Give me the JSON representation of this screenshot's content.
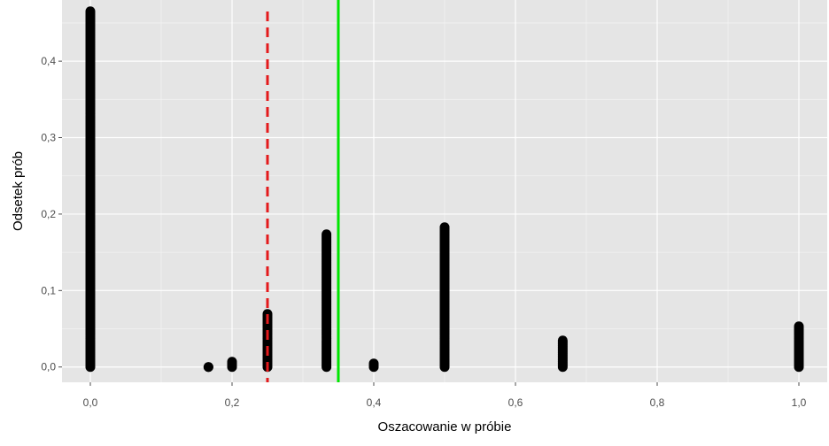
{
  "chart_data": {
    "type": "scatter",
    "title": "",
    "xlabel": "Oszacowanie w próbie",
    "ylabel": "Odsetek prób",
    "xlim": [
      -0.04,
      1.04
    ],
    "ylim": [
      -0.02,
      0.48
    ],
    "x_ticks": [
      0.0,
      0.2,
      0.4,
      0.6,
      0.8,
      1.0
    ],
    "x_tick_labels": [
      "0,0",
      "0,2",
      "0,4",
      "0,6",
      "0,8",
      "1,0"
    ],
    "y_ticks": [
      0.0,
      0.1,
      0.2,
      0.3,
      0.4
    ],
    "y_tick_labels": [
      "0,0",
      "0,1",
      "0,2",
      "0,3",
      "0,4"
    ],
    "grid": true,
    "series": [
      {
        "color": "#000000",
        "stacks": [
          {
            "x": 0.0,
            "top": 0.467
          },
          {
            "x": 0.1667,
            "top": 0.0
          },
          {
            "x": 0.2,
            "top": 0.008
          },
          {
            "x": 0.25,
            "top": 0.07
          },
          {
            "x": 0.3333,
            "top": 0.175
          },
          {
            "x": 0.4,
            "top": 0.006
          },
          {
            "x": 0.5,
            "top": 0.183
          },
          {
            "x": 0.6667,
            "top": 0.035
          },
          {
            "x": 1.0,
            "top": 0.055
          }
        ]
      }
    ],
    "vlines": [
      {
        "x": 0.25,
        "color": "#e41a1c",
        "style": "dashed"
      },
      {
        "x": 0.35,
        "color": "#00e600",
        "style": "solid"
      }
    ]
  },
  "colors": {
    "panel_background": "#e5e5e5",
    "grid_major": "#ffffff",
    "points": "#000000"
  }
}
